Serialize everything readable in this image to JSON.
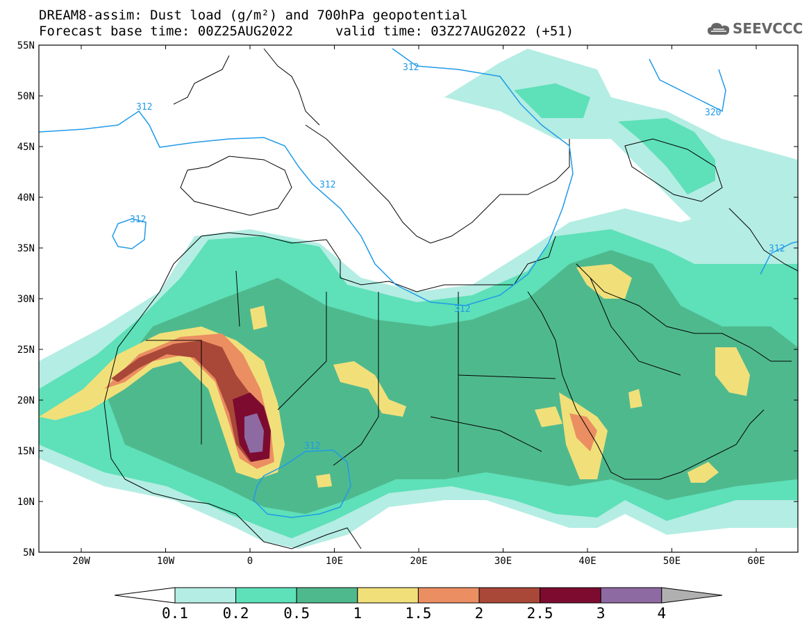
{
  "header": {
    "title_line1": "DREAM8-assim: Dust load (g/m²) and 700hPa geopotential",
    "title_line2a": "Forecast base time: 00Z25AUG2022",
    "title_line2b": "valid time: 03Z27AUG2022 (+51)"
  },
  "logo": {
    "text": "SEEVCCC",
    "icon": "cloud-icon"
  },
  "map": {
    "lat_labels": [
      "55N",
      "50N",
      "45N",
      "40N",
      "35N",
      "30N",
      "25N",
      "20N",
      "15N",
      "10N",
      "5N"
    ],
    "lon_labels": [
      "20W",
      "10W",
      "0",
      "10E",
      "20E",
      "30E",
      "40E",
      "50E",
      "60E"
    ],
    "contour_labels": [
      "312",
      "312",
      "312",
      "312",
      "312",
      "312",
      "320",
      "312"
    ]
  },
  "legend": {
    "labels": [
      "0.1",
      "0.2",
      "0.5",
      "1",
      "1.5",
      "2",
      "2.5",
      "3",
      "4"
    ],
    "colors": [
      "#b4ede3",
      "#5ee0b8",
      "#4fb98e",
      "#f1e07a",
      "#eb8e62",
      "#a94838",
      "#7d0b2f",
      "#8e6aa2"
    ],
    "over_color": "#b0b0b0",
    "under_color": "#ffffff"
  },
  "colors": {
    "contour": "#1f9ae8",
    "border": "#000000"
  }
}
